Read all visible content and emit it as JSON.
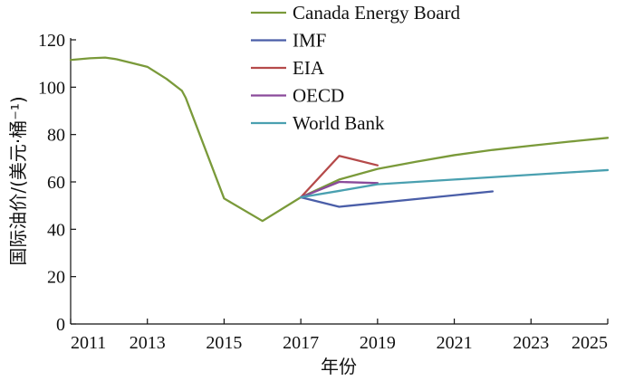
{
  "chart_data": {
    "type": "line",
    "xlabel": "年份",
    "ylabel": "国际油价/(美元·桶⁻¹)",
    "xlim": [
      2011,
      2025
    ],
    "ylim": [
      0,
      120
    ],
    "x_ticks": [
      2011,
      2013,
      2015,
      2017,
      2019,
      2021,
      2023,
      2025
    ],
    "y_ticks": [
      0,
      20,
      40,
      60,
      80,
      100,
      120
    ],
    "grid": false,
    "legend_position": "top-right",
    "series": [
      {
        "name": "Canada Energy Board",
        "color": "#7a9a3a",
        "points": [
          [
            2011,
            111.5
          ],
          [
            2011.5,
            112.2
          ],
          [
            2011.9,
            112.5
          ],
          [
            2012.2,
            111.8
          ],
          [
            2012.6,
            110.2
          ],
          [
            2013,
            108.6
          ],
          [
            2013.5,
            103.5
          ],
          [
            2013.9,
            98.5
          ],
          [
            2014,
            95.5
          ],
          [
            2015,
            53
          ],
          [
            2016,
            43.5
          ],
          [
            2017,
            53.5
          ],
          [
            2018,
            61
          ],
          [
            2019,
            65.5
          ],
          [
            2020,
            68.5
          ],
          [
            2021,
            71.3
          ],
          [
            2022,
            73.5
          ],
          [
            2023,
            75.3
          ],
          [
            2024,
            77
          ],
          [
            2025,
            78.6
          ]
        ]
      },
      {
        "name": "IMF",
        "color": "#4a5ea8",
        "points": [
          [
            2017,
            53.5
          ],
          [
            2018,
            49.5
          ],
          [
            2022,
            56
          ]
        ]
      },
      {
        "name": "EIA",
        "color": "#b54a4a",
        "points": [
          [
            2017,
            53.5
          ],
          [
            2018,
            71
          ],
          [
            2019,
            67
          ]
        ]
      },
      {
        "name": "OECD",
        "color": "#8a4a9a",
        "points": [
          [
            2017,
            53.5
          ],
          [
            2018,
            60
          ],
          [
            2019,
            59.5
          ]
        ]
      },
      {
        "name": "World Bank",
        "color": "#4aa0b0",
        "points": [
          [
            2017,
            53.5
          ],
          [
            2018,
            56.2
          ],
          [
            2019,
            59
          ],
          [
            2020,
            60
          ],
          [
            2021,
            61
          ],
          [
            2022,
            62
          ],
          [
            2023,
            63
          ],
          [
            2024,
            64
          ],
          [
            2025,
            65
          ]
        ]
      }
    ]
  }
}
